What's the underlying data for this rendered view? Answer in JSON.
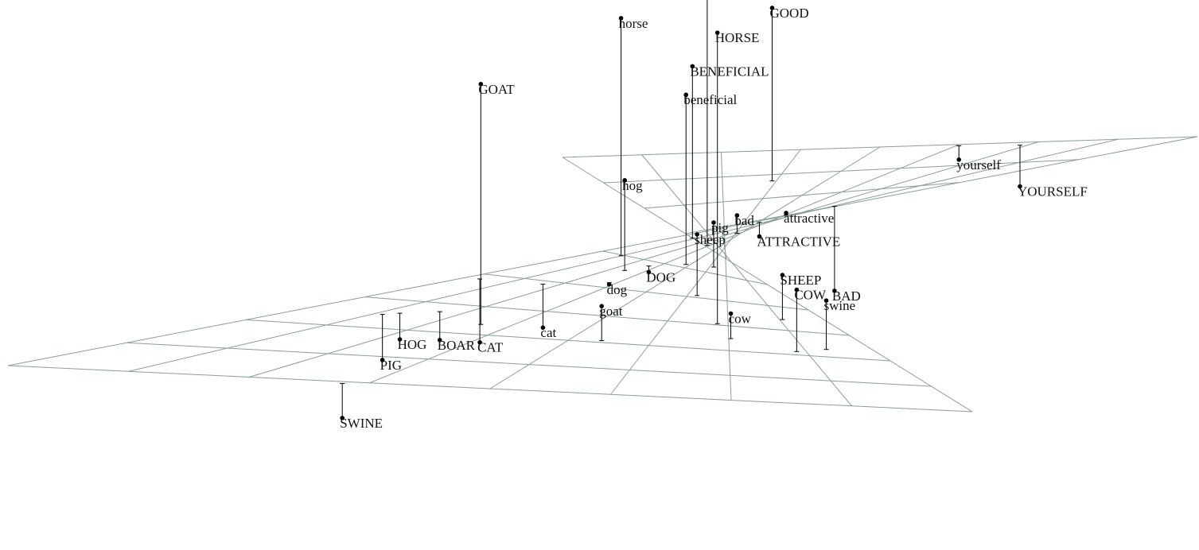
{
  "chart_data": {
    "type": "scatter",
    "title": "",
    "xlabel": "",
    "ylabel": "",
    "zlabel": "",
    "grid": true,
    "legend": "none",
    "points": [
      {
        "label": "HORSE",
        "x": 3.05,
        "y": 5.82,
        "z": 5.23
      },
      {
        "label": "horse",
        "x": 4.98,
        "y": 0.99,
        "z": 4.27
      },
      {
        "label": "good",
        "x": 5.74,
        "y": 2.85,
        "z": 6.13
      },
      {
        "label": "GOAT",
        "x": 2.37,
        "y": 2.61,
        "z": 4.32
      },
      {
        "label": "BENEFICIAL",
        "x": 5.71,
        "y": 0.83,
        "z": 3.09
      },
      {
        "label": "beneficial",
        "x": 5.11,
        "y": 3.82,
        "z": 3.05
      },
      {
        "label": "GOOD",
        "x": 8.73,
        "y": 5.08,
        "z": 3.11
      },
      {
        "label": "hog",
        "x": 4.61,
        "y": 2.41,
        "z": 1.62
      },
      {
        "label": "swine",
        "x": 2.31,
        "y": 7.31,
        "z": 0.88
      },
      {
        "label": "COW",
        "x": 2.14,
        "y": 6.87,
        "z": 1.11
      },
      {
        "label": "SHEEP",
        "x": 3.45,
        "y": 7.06,
        "z": 0.8
      },
      {
        "label": "sheep",
        "x": 4.08,
        "y": 5.23,
        "z": 1.1
      },
      {
        "label": "pig",
        "x": 5.24,
        "y": 5.22,
        "z": 0.8
      },
      {
        "label": "cow",
        "x": 2.49,
        "y": 6.03,
        "z": 0.45
      },
      {
        "label": "goat",
        "x": 2.07,
        "y": 4.39,
        "z": 0.62
      },
      {
        "label": "bad",
        "x": 6.56,
        "y": 4.83,
        "z": 0.32
      },
      {
        "label": "ATTRACTIVE",
        "x": 6.86,
        "y": 3.89,
        "z": -0.25
      },
      {
        "label": "attractive",
        "x": 7.01,
        "y": 2.84,
        "z": 0.04
      },
      {
        "label": "SWINE",
        "x": -0.07,
        "y": 2.81,
        "z": -0.62
      },
      {
        "label": "dog",
        "x": 4.17,
        "y": 2.83,
        "z": -0.03
      },
      {
        "label": "DOG",
        "x": 4.85,
        "y": 2.71,
        "z": -0.11
      },
      {
        "label": "yourself",
        "x": 9.94,
        "y": 2.96,
        "z": -0.25
      },
      {
        "label": "YOURSELF",
        "x": 9.87,
        "y": 2.11,
        "z": -0.74
      },
      {
        "label": "HOG",
        "x": 2.56,
        "y": 1.26,
        "z": -0.47
      },
      {
        "label": "PIG",
        "x": 2.48,
        "y": 1.12,
        "z": -0.82
      },
      {
        "label": "BOAR",
        "x": 2.71,
        "y": 1.65,
        "z": -0.51
      },
      {
        "label": "cat",
        "x": 3.89,
        "y": 1.69,
        "z": -0.78
      },
      {
        "label": "CAT",
        "x": 3.85,
        "y": 0.32,
        "z": -1.14
      },
      {
        "label": "BAD",
        "x": 7.06,
        "y": 0.64,
        "z": -1.52
      }
    ]
  }
}
